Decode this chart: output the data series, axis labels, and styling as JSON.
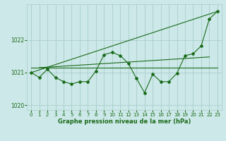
{
  "background_color": "#cce8e8",
  "grid_color": "#aacccc",
  "line_color": "#1a6b1a",
  "xlabel": "Graphe pression niveau de la mer (hPa)",
  "ylim": [
    1019.85,
    1023.1
  ],
  "xlim": [
    -0.5,
    23.5
  ],
  "yticks": [
    1020,
    1021,
    1022
  ],
  "xticks": [
    0,
    1,
    2,
    3,
    4,
    5,
    6,
    7,
    8,
    9,
    10,
    11,
    12,
    13,
    14,
    15,
    16,
    17,
    18,
    19,
    20,
    21,
    22,
    23
  ],
  "series1_x": [
    0,
    1,
    2,
    3,
    4,
    5,
    6,
    7,
    8,
    9,
    10,
    11,
    12,
    13,
    14,
    15,
    16,
    17,
    18,
    19,
    20,
    21,
    22,
    23
  ],
  "series1_y": [
    1021.0,
    1020.85,
    1021.1,
    1020.85,
    1020.72,
    1020.65,
    1020.72,
    1020.72,
    1021.05,
    1021.55,
    1021.62,
    1021.52,
    1021.28,
    1020.82,
    1020.38,
    1020.95,
    1020.72,
    1020.72,
    1020.98,
    1021.52,
    1021.58,
    1021.82,
    1022.65,
    1022.88
  ],
  "trend_line_x": [
    0,
    23
  ],
  "trend_line_y": [
    1021.0,
    1022.88
  ],
  "flat_line_y": 1021.15,
  "flat_line_x": [
    0,
    23
  ],
  "upper_trend_x": [
    1,
    22
  ],
  "upper_trend_y": [
    1021.15,
    1021.48
  ]
}
